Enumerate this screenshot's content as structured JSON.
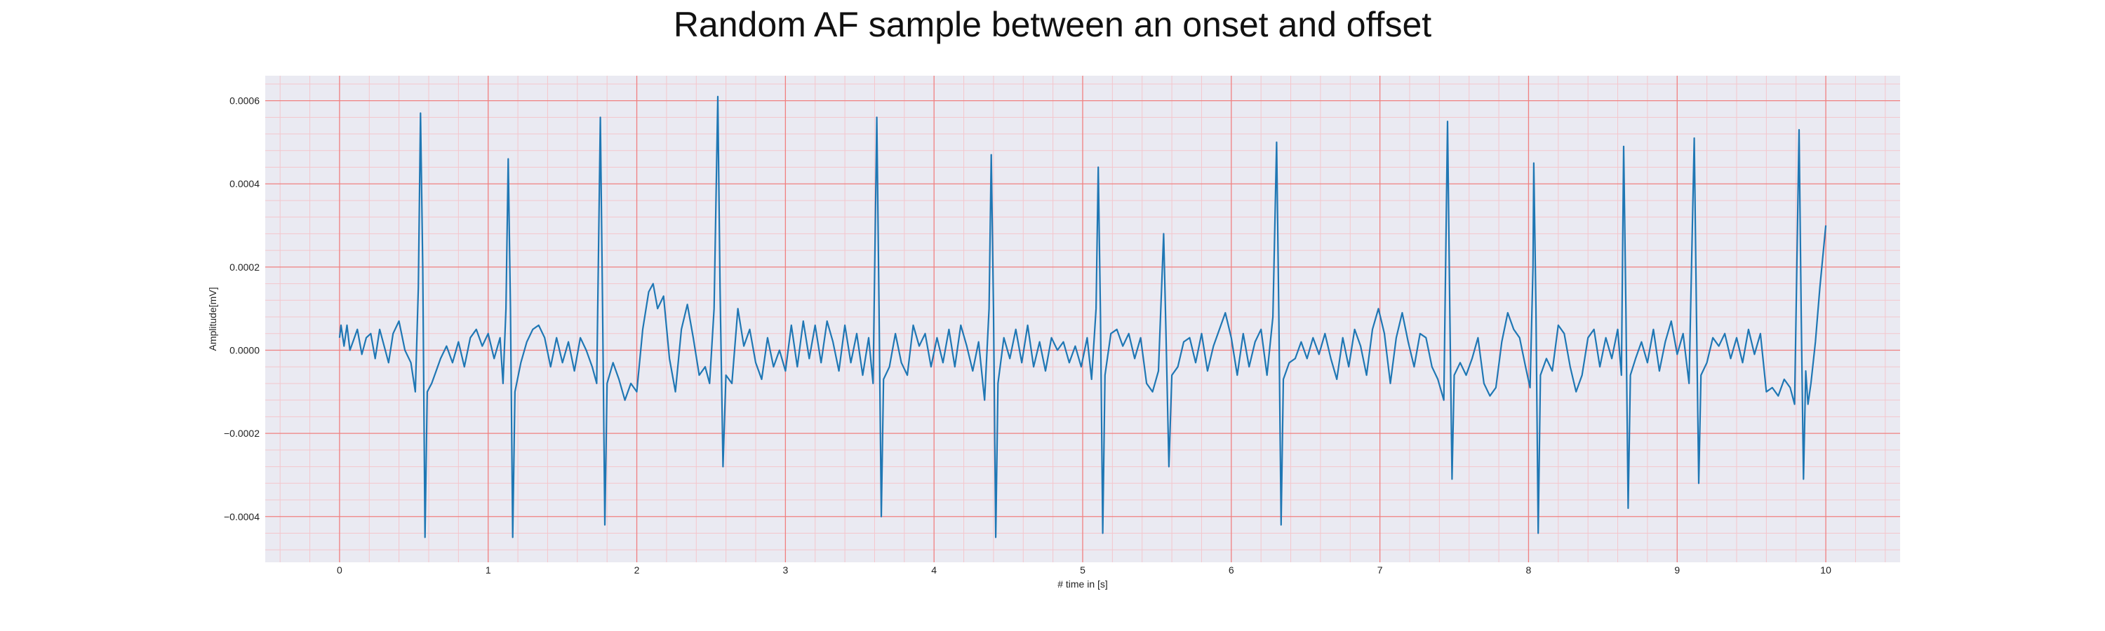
{
  "chart_data": {
    "type": "line",
    "title": "Random AF sample between an onset and offset",
    "xlabel": "# time in [s]",
    "ylabel": "Amplitude[mV]",
    "xlim": [
      -0.5,
      10.5
    ],
    "ylim": [
      -0.00051,
      0.00066
    ],
    "x_ticks": [
      0,
      1,
      2,
      3,
      4,
      5,
      6,
      7,
      8,
      9,
      10
    ],
    "x_tick_labels": [
      "0",
      "1",
      "2",
      "3",
      "4",
      "5",
      "6",
      "7",
      "8",
      "9",
      "10"
    ],
    "y_ticks": [
      -0.0004,
      -0.0002,
      0.0,
      0.0002,
      0.0004,
      0.0006
    ],
    "y_tick_labels": [
      "−0.0004",
      "−0.0002",
      "0.0000",
      "0.0002",
      "0.0004",
      "0.0006"
    ],
    "grid": "on",
    "colors": {
      "line": "#1f77b4",
      "major_grid": "#f08080",
      "minor_grid": "#f4c6cc",
      "plot_bg": "#eaeaf2"
    },
    "series": [
      {
        "points": [
          [
            0.0,
            3e-05
          ],
          [
            0.01,
            6e-05
          ],
          [
            0.03,
            1e-05
          ],
          [
            0.05,
            6e-05
          ],
          [
            0.07,
            0.0
          ],
          [
            0.09,
            2e-05
          ],
          [
            0.12,
            5e-05
          ],
          [
            0.15,
            -1e-05
          ],
          [
            0.18,
            3e-05
          ],
          [
            0.21,
            4e-05
          ],
          [
            0.24,
            -2e-05
          ],
          [
            0.27,
            5e-05
          ],
          [
            0.3,
            1e-05
          ],
          [
            0.33,
            -3e-05
          ],
          [
            0.36,
            4e-05
          ],
          [
            0.4,
            7e-05
          ],
          [
            0.44,
            0.0
          ],
          [
            0.48,
            -3e-05
          ],
          [
            0.51,
            -0.0001
          ],
          [
            0.53,
            0.00015
          ],
          [
            0.545,
            0.00057
          ],
          [
            0.56,
            0.0002
          ],
          [
            0.575,
            -0.00045
          ],
          [
            0.59,
            -0.0001
          ],
          [
            0.62,
            -8e-05
          ],
          [
            0.65,
            -5e-05
          ],
          [
            0.68,
            -2e-05
          ],
          [
            0.72,
            1e-05
          ],
          [
            0.76,
            -3e-05
          ],
          [
            0.8,
            2e-05
          ],
          [
            0.84,
            -4e-05
          ],
          [
            0.88,
            3e-05
          ],
          [
            0.92,
            5e-05
          ],
          [
            0.96,
            1e-05
          ],
          [
            1.0,
            4e-05
          ],
          [
            1.04,
            -2e-05
          ],
          [
            1.08,
            3e-05
          ],
          [
            1.1,
            -8e-05
          ],
          [
            1.12,
            0.0001
          ],
          [
            1.135,
            0.00046
          ],
          [
            1.15,
            0.0001
          ],
          [
            1.165,
            -0.00045
          ],
          [
            1.18,
            -0.0001
          ],
          [
            1.22,
            -3e-05
          ],
          [
            1.26,
            2e-05
          ],
          [
            1.3,
            5e-05
          ],
          [
            1.34,
            6e-05
          ],
          [
            1.38,
            3e-05
          ],
          [
            1.42,
            -4e-05
          ],
          [
            1.46,
            3e-05
          ],
          [
            1.5,
            -3e-05
          ],
          [
            1.54,
            2e-05
          ],
          [
            1.58,
            -5e-05
          ],
          [
            1.62,
            3e-05
          ],
          [
            1.66,
            0.0
          ],
          [
            1.7,
            -4e-05
          ],
          [
            1.73,
            -8e-05
          ],
          [
            1.755,
            0.00056
          ],
          [
            1.77,
            0.0001
          ],
          [
            1.785,
            -0.00042
          ],
          [
            1.8,
            -8e-05
          ],
          [
            1.84,
            -3e-05
          ],
          [
            1.88,
            -7e-05
          ],
          [
            1.92,
            -0.00012
          ],
          [
            1.96,
            -8e-05
          ],
          [
            2.0,
            -0.0001
          ],
          [
            2.04,
            5e-05
          ],
          [
            2.08,
            0.00014
          ],
          [
            2.11,
            0.00016
          ],
          [
            2.14,
            0.0001
          ],
          [
            2.18,
            0.00013
          ],
          [
            2.22,
            -2e-05
          ],
          [
            2.26,
            -0.0001
          ],
          [
            2.3,
            5e-05
          ],
          [
            2.34,
            0.00011
          ],
          [
            2.38,
            3e-05
          ],
          [
            2.42,
            -6e-05
          ],
          [
            2.46,
            -4e-05
          ],
          [
            2.49,
            -8e-05
          ],
          [
            2.52,
            0.0001
          ],
          [
            2.545,
            0.00061
          ],
          [
            2.56,
            0.00015
          ],
          [
            2.58,
            -0.00028
          ],
          [
            2.6,
            -6e-05
          ],
          [
            2.64,
            -8e-05
          ],
          [
            2.68,
            0.0001
          ],
          [
            2.72,
            1e-05
          ],
          [
            2.76,
            5e-05
          ],
          [
            2.8,
            -3e-05
          ],
          [
            2.84,
            -7e-05
          ],
          [
            2.88,
            3e-05
          ],
          [
            2.92,
            -4e-05
          ],
          [
            2.96,
            0.0
          ],
          [
            3.0,
            -5e-05
          ],
          [
            3.04,
            6e-05
          ],
          [
            3.08,
            -4e-05
          ],
          [
            3.12,
            7e-05
          ],
          [
            3.16,
            -2e-05
          ],
          [
            3.2,
            6e-05
          ],
          [
            3.24,
            -3e-05
          ],
          [
            3.28,
            7e-05
          ],
          [
            3.32,
            2e-05
          ],
          [
            3.36,
            -5e-05
          ],
          [
            3.4,
            6e-05
          ],
          [
            3.44,
            -3e-05
          ],
          [
            3.48,
            4e-05
          ],
          [
            3.52,
            -6e-05
          ],
          [
            3.56,
            3e-05
          ],
          [
            3.59,
            -8e-05
          ],
          [
            3.615,
            0.00056
          ],
          [
            3.63,
            0.0001
          ],
          [
            3.645,
            -0.0004
          ],
          [
            3.66,
            -7e-05
          ],
          [
            3.7,
            -4e-05
          ],
          [
            3.74,
            4e-05
          ],
          [
            3.78,
            -3e-05
          ],
          [
            3.82,
            -6e-05
          ],
          [
            3.86,
            6e-05
          ],
          [
            3.9,
            1e-05
          ],
          [
            3.94,
            4e-05
          ],
          [
            3.98,
            -4e-05
          ],
          [
            4.02,
            3e-05
          ],
          [
            4.06,
            -3e-05
          ],
          [
            4.1,
            5e-05
          ],
          [
            4.14,
            -4e-05
          ],
          [
            4.18,
            6e-05
          ],
          [
            4.22,
            1e-05
          ],
          [
            4.26,
            -5e-05
          ],
          [
            4.3,
            2e-05
          ],
          [
            4.34,
            -0.00012
          ],
          [
            4.37,
            0.0001
          ],
          [
            4.385,
            0.00047
          ],
          [
            4.4,
            0.0001
          ],
          [
            4.415,
            -0.00045
          ],
          [
            4.43,
            -8e-05
          ],
          [
            4.47,
            3e-05
          ],
          [
            4.51,
            -2e-05
          ],
          [
            4.55,
            5e-05
          ],
          [
            4.59,
            -3e-05
          ],
          [
            4.63,
            6e-05
          ],
          [
            4.67,
            -4e-05
          ],
          [
            4.71,
            2e-05
          ],
          [
            4.75,
            -5e-05
          ],
          [
            4.79,
            3e-05
          ],
          [
            4.83,
            0.0
          ],
          [
            4.87,
            2e-05
          ],
          [
            4.91,
            -3e-05
          ],
          [
            4.95,
            1e-05
          ],
          [
            4.99,
            -4e-05
          ],
          [
            5.03,
            3e-05
          ],
          [
            5.06,
            -7e-05
          ],
          [
            5.09,
            0.0001
          ],
          [
            5.105,
            0.00044
          ],
          [
            5.12,
            8e-05
          ],
          [
            5.135,
            -0.00044
          ],
          [
            5.15,
            -6e-05
          ],
          [
            5.19,
            4e-05
          ],
          [
            5.23,
            5e-05
          ],
          [
            5.27,
            1e-05
          ],
          [
            5.31,
            4e-05
          ],
          [
            5.35,
            -2e-05
          ],
          [
            5.39,
            3e-05
          ],
          [
            5.43,
            -8e-05
          ],
          [
            5.47,
            -0.0001
          ],
          [
            5.51,
            -5e-05
          ],
          [
            5.545,
            0.00028
          ],
          [
            5.56,
            5e-05
          ],
          [
            5.58,
            -0.00028
          ],
          [
            5.6,
            -6e-05
          ],
          [
            5.64,
            -4e-05
          ],
          [
            5.68,
            2e-05
          ],
          [
            5.72,
            3e-05
          ],
          [
            5.76,
            -3e-05
          ],
          [
            5.8,
            4e-05
          ],
          [
            5.84,
            -5e-05
          ],
          [
            5.88,
            1e-05
          ],
          [
            5.92,
            5e-05
          ],
          [
            5.96,
            9e-05
          ],
          [
            6.0,
            3e-05
          ],
          [
            6.04,
            -6e-05
          ],
          [
            6.08,
            4e-05
          ],
          [
            6.12,
            -4e-05
          ],
          [
            6.16,
            2e-05
          ],
          [
            6.2,
            5e-05
          ],
          [
            6.24,
            -6e-05
          ],
          [
            6.28,
            8e-05
          ],
          [
            6.305,
            0.0005
          ],
          [
            6.32,
            8e-05
          ],
          [
            6.335,
            -0.00042
          ],
          [
            6.35,
            -7e-05
          ],
          [
            6.39,
            -3e-05
          ],
          [
            6.43,
            -2e-05
          ],
          [
            6.47,
            2e-05
          ],
          [
            6.51,
            -2e-05
          ],
          [
            6.55,
            3e-05
          ],
          [
            6.59,
            -1e-05
          ],
          [
            6.63,
            4e-05
          ],
          [
            6.67,
            -2e-05
          ],
          [
            6.71,
            -7e-05
          ],
          [
            6.75,
            3e-05
          ],
          [
            6.79,
            -4e-05
          ],
          [
            6.83,
            5e-05
          ],
          [
            6.87,
            1e-05
          ],
          [
            6.91,
            -6e-05
          ],
          [
            6.95,
            5e-05
          ],
          [
            6.99,
            0.0001
          ],
          [
            7.03,
            4e-05
          ],
          [
            7.07,
            -8e-05
          ],
          [
            7.11,
            3e-05
          ],
          [
            7.15,
            9e-05
          ],
          [
            7.19,
            2e-05
          ],
          [
            7.23,
            -4e-05
          ],
          [
            7.27,
            4e-05
          ],
          [
            7.31,
            3e-05
          ],
          [
            7.35,
            -4e-05
          ],
          [
            7.39,
            -7e-05
          ],
          [
            7.43,
            -0.00012
          ],
          [
            7.455,
            0.00055
          ],
          [
            7.47,
            0.0001
          ],
          [
            7.485,
            -0.00031
          ],
          [
            7.5,
            -6e-05
          ],
          [
            7.54,
            -3e-05
          ],
          [
            7.58,
            -6e-05
          ],
          [
            7.62,
            -2e-05
          ],
          [
            7.66,
            3e-05
          ],
          [
            7.7,
            -8e-05
          ],
          [
            7.74,
            -0.00011
          ],
          [
            7.78,
            -9e-05
          ],
          [
            7.82,
            2e-05
          ],
          [
            7.86,
            9e-05
          ],
          [
            7.9,
            5e-05
          ],
          [
            7.94,
            3e-05
          ],
          [
            7.98,
            -4e-05
          ],
          [
            8.01,
            -9e-05
          ],
          [
            8.03,
            0.0002
          ],
          [
            8.035,
            0.00045
          ],
          [
            8.05,
            0.0001
          ],
          [
            8.065,
            -0.00044
          ],
          [
            8.08,
            -6e-05
          ],
          [
            8.12,
            -2e-05
          ],
          [
            8.16,
            -5e-05
          ],
          [
            8.2,
            6e-05
          ],
          [
            8.24,
            4e-05
          ],
          [
            8.28,
            -4e-05
          ],
          [
            8.32,
            -0.0001
          ],
          [
            8.36,
            -6e-05
          ],
          [
            8.4,
            3e-05
          ],
          [
            8.44,
            5e-05
          ],
          [
            8.48,
            -4e-05
          ],
          [
            8.52,
            3e-05
          ],
          [
            8.56,
            -2e-05
          ],
          [
            8.6,
            5e-05
          ],
          [
            8.625,
            -6e-05
          ],
          [
            8.64,
            0.00049
          ],
          [
            8.655,
            0.0001
          ],
          [
            8.67,
            -0.00038
          ],
          [
            8.685,
            -6e-05
          ],
          [
            8.72,
            -2e-05
          ],
          [
            8.76,
            2e-05
          ],
          [
            8.8,
            -3e-05
          ],
          [
            8.84,
            5e-05
          ],
          [
            8.88,
            -5e-05
          ],
          [
            8.92,
            2e-05
          ],
          [
            8.96,
            7e-05
          ],
          [
            9.0,
            -1e-05
          ],
          [
            9.04,
            4e-05
          ],
          [
            9.08,
            -8e-05
          ],
          [
            9.115,
            0.00051
          ],
          [
            9.13,
            8e-05
          ],
          [
            9.145,
            -0.00032
          ],
          [
            9.16,
            -6e-05
          ],
          [
            9.2,
            -3e-05
          ],
          [
            9.24,
            3e-05
          ],
          [
            9.28,
            1e-05
          ],
          [
            9.32,
            4e-05
          ],
          [
            9.36,
            -2e-05
          ],
          [
            9.4,
            3e-05
          ],
          [
            9.44,
            -3e-05
          ],
          [
            9.48,
            5e-05
          ],
          [
            9.52,
            -1e-05
          ],
          [
            9.56,
            4e-05
          ],
          [
            9.6,
            -0.0001
          ],
          [
            9.64,
            -9e-05
          ],
          [
            9.68,
            -0.00011
          ],
          [
            9.72,
            -7e-05
          ],
          [
            9.76,
            -9e-05
          ],
          [
            9.79,
            -0.00013
          ],
          [
            9.82,
            0.00053
          ],
          [
            9.835,
            8e-05
          ],
          [
            9.85,
            -0.00031
          ],
          [
            9.865,
            -5e-05
          ],
          [
            9.88,
            -0.00013
          ],
          [
            9.9,
            -8e-05
          ],
          [
            9.93,
            2e-05
          ],
          [
            9.96,
            0.00015
          ],
          [
            10.0,
            0.0003
          ]
        ]
      }
    ]
  }
}
